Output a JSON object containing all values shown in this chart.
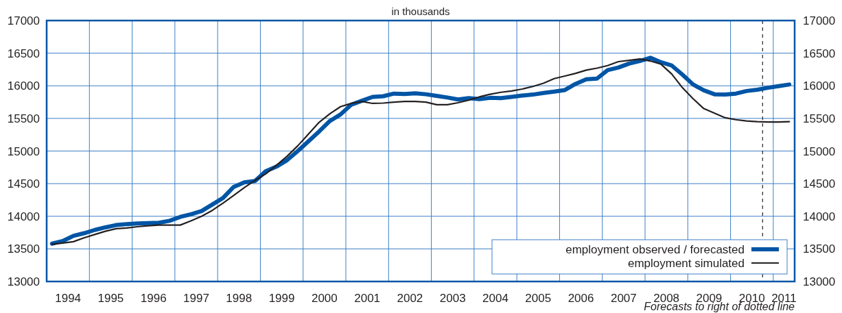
{
  "chart_data": {
    "type": "line",
    "subtitle": "in thousands",
    "x": [
      1994.125,
      1994.375,
      1994.625,
      1994.875,
      1995.125,
      1995.375,
      1995.625,
      1995.875,
      1996.125,
      1996.375,
      1996.625,
      1996.875,
      1997.125,
      1997.375,
      1997.625,
      1997.875,
      1998.125,
      1998.375,
      1998.625,
      1998.875,
      1999.125,
      1999.375,
      1999.625,
      1999.875,
      2000.125,
      2000.375,
      2000.625,
      2000.875,
      2001.125,
      2001.375,
      2001.625,
      2001.875,
      2002.125,
      2002.375,
      2002.625,
      2002.875,
      2003.125,
      2003.375,
      2003.625,
      2003.875,
      2004.125,
      2004.375,
      2004.625,
      2004.875,
      2005.125,
      2005.375,
      2005.625,
      2005.875,
      2006.125,
      2006.375,
      2006.625,
      2006.875,
      2007.125,
      2007.375,
      2007.625,
      2007.875,
      2008.125,
      2008.375,
      2008.625,
      2008.875,
      2009.125,
      2009.375,
      2009.625,
      2009.875,
      2010.125,
      2010.375,
      2010.625,
      2010.875,
      2011.125,
      2011.375
    ],
    "series": [
      {
        "name": "employment observed / forecasted",
        "color": "#0055a5",
        "values": [
          13580,
          13620,
          13700,
          13740,
          13790,
          13830,
          13865,
          13880,
          13890,
          13895,
          13900,
          13930,
          13990,
          14030,
          14080,
          14180,
          14280,
          14450,
          14520,
          14540,
          14690,
          14760,
          14860,
          15000,
          15150,
          15300,
          15460,
          15560,
          15710,
          15770,
          15830,
          15840,
          15880,
          15875,
          15885,
          15870,
          15845,
          15820,
          15790,
          15810,
          15795,
          15815,
          15810,
          15830,
          15850,
          15865,
          15890,
          15910,
          15935,
          16030,
          16100,
          16110,
          16240,
          16280,
          16340,
          16380,
          16430,
          16360,
          16310,
          16170,
          16020,
          15930,
          15870,
          15865,
          15880,
          15920,
          15940,
          15970,
          15995,
          16020
        ]
      },
      {
        "name": "employment simulated",
        "color": "#231f20",
        "values": [
          13570,
          13590,
          13610,
          13670,
          13720,
          13770,
          13810,
          13820,
          13840,
          13855,
          13865,
          13865,
          13865,
          13930,
          14000,
          14090,
          14200,
          14320,
          14440,
          14550,
          14650,
          14780,
          14920,
          15080,
          15260,
          15440,
          15570,
          15680,
          15730,
          15760,
          15730,
          15735,
          15750,
          15760,
          15760,
          15750,
          15710,
          15710,
          15740,
          15780,
          15830,
          15870,
          15900,
          15920,
          15950,
          15990,
          16040,
          16110,
          16150,
          16190,
          16240,
          16270,
          16310,
          16370,
          16390,
          16410,
          16380,
          16330,
          16180,
          15970,
          15800,
          15650,
          15580,
          15510,
          15480,
          15460,
          15450,
          15445,
          15445,
          15450
        ]
      }
    ],
    "xlim": [
      1994,
      2011.5
    ],
    "xticks": [
      {
        "value": 1994,
        "label": null
      },
      {
        "value": 1995,
        "label": null
      },
      {
        "value": 1996,
        "label": null
      },
      {
        "value": 1997,
        "label": null
      },
      {
        "value": 1998,
        "label": null
      },
      {
        "value": 1999,
        "label": null
      },
      {
        "value": 2000,
        "label": null
      },
      {
        "value": 2001,
        "label": null
      },
      {
        "value": 2002,
        "label": null
      },
      {
        "value": 2003,
        "label": null
      },
      {
        "value": 2004,
        "label": null
      },
      {
        "value": 2005,
        "label": null
      },
      {
        "value": 2006,
        "label": null
      },
      {
        "value": 2007,
        "label": null
      },
      {
        "value": 2008,
        "label": null
      },
      {
        "value": 2009,
        "label": null
      },
      {
        "value": 2010,
        "label": null
      },
      {
        "value": 2011,
        "label": null
      },
      {
        "value": 1994.5,
        "label": "1994"
      },
      {
        "value": 1995.5,
        "label": "1995"
      },
      {
        "value": 1996.5,
        "label": "1996"
      },
      {
        "value": 1997.5,
        "label": "1997"
      },
      {
        "value": 1998.5,
        "label": "1998"
      },
      {
        "value": 1999.5,
        "label": "1999"
      },
      {
        "value": 2000.5,
        "label": "2000"
      },
      {
        "value": 2001.5,
        "label": "2001"
      },
      {
        "value": 2002.5,
        "label": "2002"
      },
      {
        "value": 2003.5,
        "label": "2003"
      },
      {
        "value": 2004.5,
        "label": "2004"
      },
      {
        "value": 2005.5,
        "label": "2005"
      },
      {
        "value": 2006.5,
        "label": "2006"
      },
      {
        "value": 2007.5,
        "label": "2007"
      },
      {
        "value": 2008.5,
        "label": "2008"
      },
      {
        "value": 2009.5,
        "label": "2009"
      },
      {
        "value": 2010.5,
        "label": "2010"
      },
      {
        "value": 2011.25,
        "label": "2011"
      }
    ],
    "ylim": [
      13000,
      17000
    ],
    "yticks": [
      13000,
      13500,
      14000,
      14500,
      15000,
      15500,
      16000,
      16500,
      17000
    ],
    "y2lim": [
      13000,
      17000
    ],
    "y2ticks": [
      13000,
      13500,
      14000,
      14500,
      15000,
      15500,
      16000,
      16500,
      17000
    ],
    "grid": true,
    "legend": "bottom right",
    "line_style": "solid",
    "marker": "none",
    "ref_lines": [
      {
        "axis": "x",
        "value": 2010.75,
        "color": "#231f20",
        "line_style": "dashed"
      }
    ],
    "annotations": [
      "Forecasts to right of dotted line"
    ]
  }
}
